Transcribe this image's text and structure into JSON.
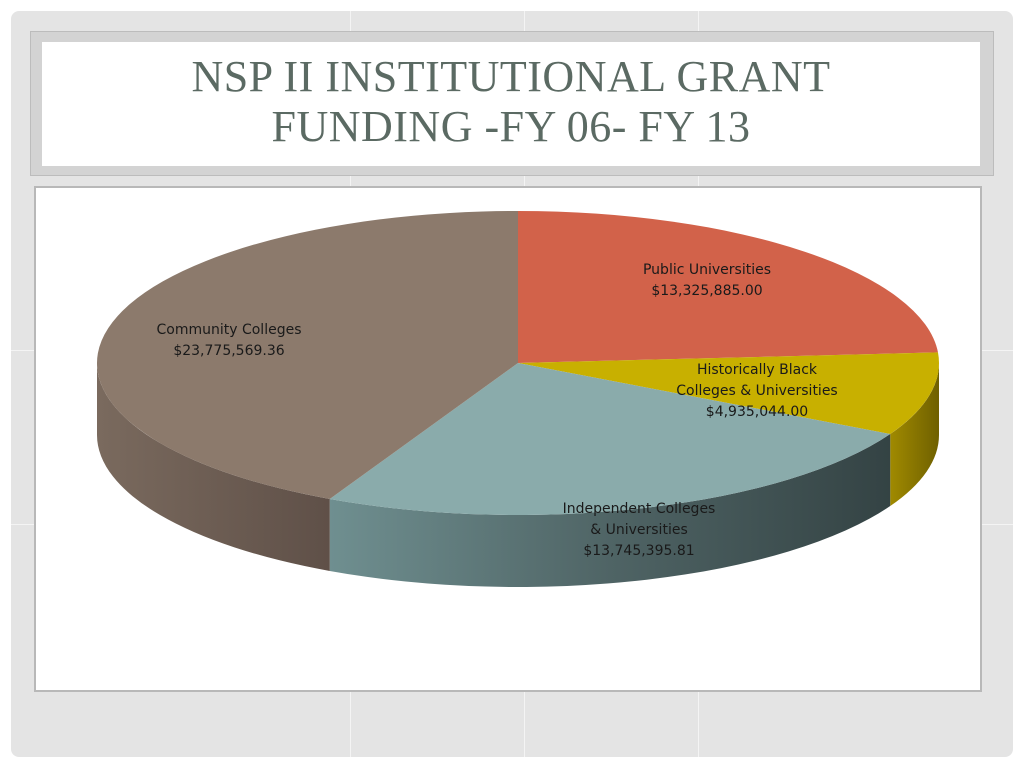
{
  "slide": {
    "title_line1": "NSP II INSTITUTIONAL GRANT",
    "title_line2": "FUNDING -FY 06- FY 13"
  },
  "colors": {
    "public": "#d2624a",
    "hbcu": "#c8b000",
    "independent": "#8aabab",
    "community": "#8c7a6c"
  },
  "chart_data": {
    "type": "pie",
    "title": "",
    "slices": [
      {
        "label": [
          "Public Universities"
        ],
        "value": 13325885.0,
        "value_text": "$13,325,885.00",
        "color": "#d2624a"
      },
      {
        "label": [
          "Historically Black",
          "Colleges & Universities"
        ],
        "value": 4935044.0,
        "value_text": "$4,935,044.00",
        "color": "#c8b000"
      },
      {
        "label": [
          "Independent Colleges",
          "& Universities"
        ],
        "value": 13745395.81,
        "value_text": "$13,745,395.81",
        "color": "#8aabab"
      },
      {
        "label": [
          "Community Colleges"
        ],
        "value": 23775569.36,
        "value_text": "$23,775,569.36",
        "color": "#8c7a6c"
      }
    ],
    "legend": "none"
  }
}
